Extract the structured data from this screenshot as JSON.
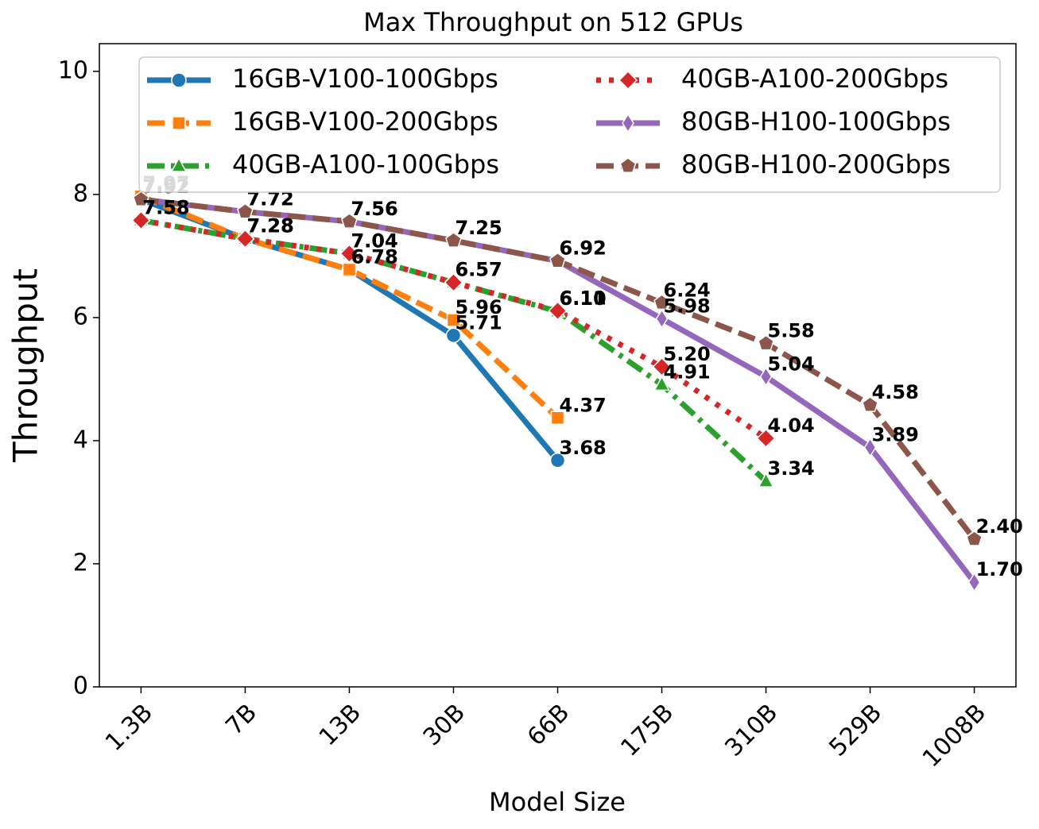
{
  "chart_data": {
    "type": "line",
    "title": "Max Throughput on 512 GPUs",
    "x_label": "Model Size",
    "y_label": "Throughput",
    "categories": [
      "1.3B",
      "7B",
      "13B",
      "30B",
      "66B",
      "175B",
      "310B",
      "529B",
      "1008B"
    ],
    "ylim": [
      0,
      10.45
    ],
    "yticks": [
      0,
      2,
      4,
      6,
      8,
      10
    ],
    "legend": "upper right",
    "series": [
      {
        "name": "16GB-V100-100Gbps",
        "color": "#1f77b4",
        "linestyle": "solid",
        "marker": "circle",
        "values": [
          7.92,
          7.28,
          6.78,
          5.71,
          3.68,
          null,
          null,
          null,
          null
        ],
        "value_labels": [
          "7.92",
          "7.28",
          "6.78",
          "5.71",
          "3.68",
          null,
          null,
          null,
          null
        ]
      },
      {
        "name": "16GB-V100-200Gbps",
        "color": "#ff7f0e",
        "linestyle": "dashed",
        "marker": "square",
        "values": [
          7.97,
          7.28,
          6.78,
          5.96,
          4.37,
          null,
          null,
          null,
          null
        ],
        "value_labels": [
          "7.97",
          "7.28",
          "6.78",
          "5.96",
          "4.37",
          null,
          null,
          null,
          null
        ]
      },
      {
        "name": "40GB-A100-100Gbps",
        "color": "#2ca02c",
        "linestyle": "dashdot",
        "marker": "triangle",
        "values": [
          7.58,
          7.28,
          7.04,
          6.57,
          6.1,
          4.91,
          3.34,
          null,
          null
        ],
        "value_labels": [
          "7.58",
          "7.28",
          "7.04",
          "6.57",
          "6.10",
          "4.91",
          "3.34",
          null,
          null
        ]
      },
      {
        "name": "40GB-A100-200Gbps",
        "color": "#d62728",
        "linestyle": "dotted",
        "marker": "diamond",
        "values": [
          7.58,
          7.28,
          7.04,
          6.57,
          6.11,
          5.2,
          4.04,
          null,
          null
        ],
        "value_labels": [
          "7.58",
          "7.28",
          "7.04",
          "6.57",
          "6.11",
          "5.20",
          "4.04",
          null,
          null
        ]
      },
      {
        "name": "80GB-H100-100Gbps",
        "color": "#9467bd",
        "linestyle": "solid",
        "marker": "thin_diamond",
        "values": [
          7.92,
          7.72,
          7.56,
          7.25,
          6.92,
          5.98,
          5.04,
          3.89,
          1.7
        ],
        "value_labels": [
          "7.92",
          "7.72",
          "7.56",
          "7.25",
          "6.92",
          "5.98",
          "5.04",
          "3.89",
          "1.70"
        ]
      },
      {
        "name": "80GB-H100-200Gbps",
        "color": "#8c564b",
        "linestyle": "dashed",
        "marker": "pentagon",
        "values": [
          7.92,
          7.72,
          7.56,
          7.25,
          6.92,
          6.24,
          5.58,
          4.58,
          2.4
        ],
        "value_labels": [
          "7.92",
          "7.72",
          "7.56",
          "7.25",
          "6.92",
          "6.24",
          "5.58",
          "4.58",
          "2.40"
        ]
      }
    ]
  }
}
